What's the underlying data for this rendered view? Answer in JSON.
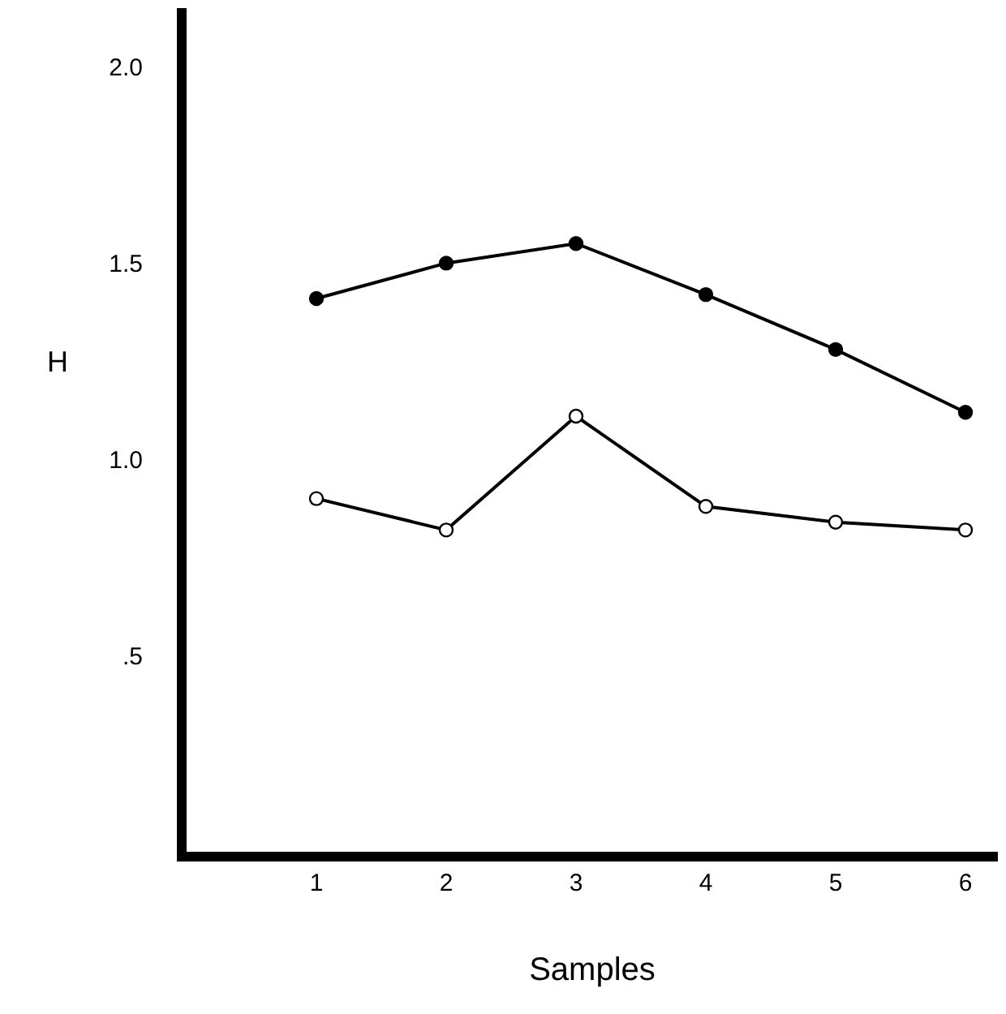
{
  "chart_data": {
    "type": "line",
    "xlabel": "Samples",
    "ylabel": "H",
    "x": [
      1,
      2,
      3,
      4,
      5,
      6
    ],
    "series": [
      {
        "color": "#000000",
        "values": [
          1.41,
          1.5,
          1.55,
          1.42,
          1.28,
          1.12
        ]
      },
      {
        "color": "#000000",
        "values": [
          0.9,
          0.82,
          1.11,
          0.88,
          0.84,
          0.82
        ]
      }
    ],
    "xlim": [
      0,
      6.25
    ],
    "xticks": [
      1,
      2,
      3,
      4,
      5,
      6
    ],
    "ylim": [
      0,
      2.15
    ],
    "yticks": [
      {
        "value": 0.5,
        "label": ".5"
      },
      {
        "value": 1.0,
        "label": "1.0"
      },
      {
        "value": 1.5,
        "label": "1.5"
      },
      {
        "value": 2.0,
        "label": "2.0"
      }
    ],
    "marker": "circle",
    "line_style": "solid"
  }
}
